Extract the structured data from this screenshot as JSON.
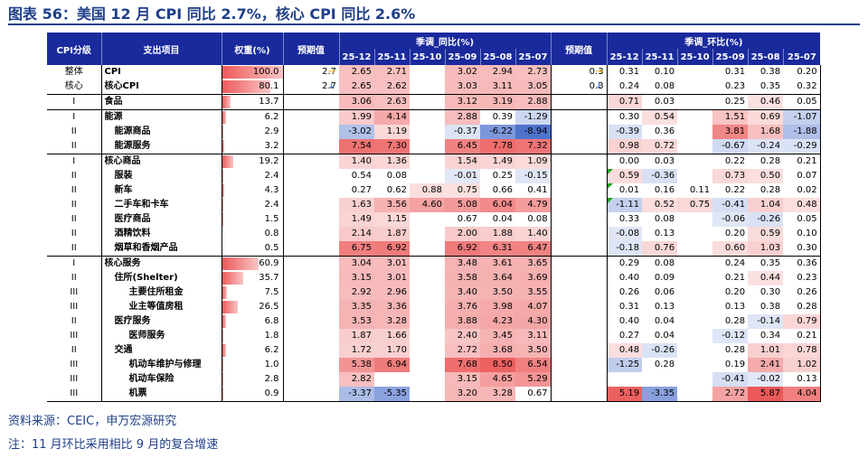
{
  "title": "图表 56：美国 12 月 CPI 同比 2.7%，核心 CPI 同比 2.6%",
  "header": {
    "cpi_level": "CPI分级",
    "item": "支出项目",
    "weight": "权重(%)",
    "forecast_yoy": "预期值",
    "yoy_group": "季调_同比(%)",
    "forecast_mom": "预期值",
    "mom_group": "季调_环比(%)",
    "months": [
      "25-12",
      "25-11",
      "25-10",
      "25-09",
      "25-08",
      "25-07"
    ]
  },
  "rows": [
    {
      "level": "整体",
      "name": "CPI",
      "indent": 0,
      "weight": "100.0",
      "wfrac": 1.0,
      "fy": "2.7",
      "fyi": "→",
      "yoy": [
        "2.65",
        "2.71",
        "",
        "3.02",
        "2.94",
        "2.73"
      ],
      "fm": "0.3",
      "fmi": "→",
      "mom": [
        "0.31",
        "0.10",
        "",
        "0.31",
        "0.38",
        "0.20"
      ]
    },
    {
      "level": "核心",
      "name": "核心CPI",
      "indent": 0,
      "weight": "80.1",
      "wfrac": 0.801,
      "fy": "2.7",
      "fyi": "↓",
      "yoy": [
        "2.65",
        "2.62",
        "",
        "3.03",
        "3.11",
        "3.05"
      ],
      "fm": "0.3",
      "fmi": "↓",
      "mom": [
        "0.24",
        "0.08",
        "",
        "0.23",
        "0.35",
        "0.32"
      ]
    },
    {
      "level": "I",
      "name": "食品",
      "indent": 0,
      "weight": "13.7",
      "wfrac": 0.137,
      "fy": "",
      "fyi": "",
      "yoy": [
        "3.06",
        "2.63",
        "",
        "3.12",
        "3.19",
        "2.88"
      ],
      "fm": "",
      "fmi": "",
      "mom": [
        "0.71",
        "0.03",
        "",
        "0.25",
        "0.46",
        "0.05"
      ]
    },
    {
      "level": "I",
      "name": "能源",
      "indent": 0,
      "weight": "6.2",
      "wfrac": 0.062,
      "fy": "",
      "fyi": "",
      "yoy": [
        "1.99",
        "4.14",
        "",
        "2.88",
        "0.39",
        "-1.29"
      ],
      "fm": "",
      "fmi": "",
      "mom": [
        "0.30",
        "0.54",
        "",
        "1.51",
        "0.69",
        "-1.07"
      ]
    },
    {
      "level": "II",
      "name": "能源商品",
      "indent": 1,
      "weight": "2.9",
      "wfrac": 0.029,
      "fy": "",
      "fyi": "",
      "yoy": [
        "-3.02",
        "1.19",
        "",
        "-0.37",
        "-6.22",
        "-8.94"
      ],
      "fm": "",
      "fmi": "",
      "mom": [
        "-0.39",
        "0.36",
        "",
        "3.81",
        "1.68",
        "-1.88"
      ]
    },
    {
      "level": "II",
      "name": "能源服务",
      "indent": 1,
      "weight": "3.2",
      "wfrac": 0.032,
      "fy": "",
      "fyi": "",
      "yoy": [
        "7.54",
        "7.30",
        "",
        "6.45",
        "7.78",
        "7.32"
      ],
      "fm": "",
      "fmi": "",
      "mom": [
        "0.98",
        "0.72",
        "",
        "-0.67",
        "-0.24",
        "-0.29"
      ]
    },
    {
      "level": "I",
      "name": "核心商品",
      "indent": 0,
      "weight": "19.2",
      "wfrac": 0.192,
      "fy": "",
      "fyi": "",
      "yoy": [
        "1.40",
        "1.36",
        "",
        "1.54",
        "1.49",
        "1.09"
      ],
      "fm": "",
      "fmi": "",
      "mom": [
        "0.00",
        "0.03",
        "",
        "0.22",
        "0.28",
        "0.21"
      ]
    },
    {
      "level": "II",
      "name": "服装",
      "indent": 1,
      "weight": "2.4",
      "wfrac": 0.024,
      "fy": "",
      "fyi": "",
      "yoy": [
        "0.54",
        "0.08",
        "",
        "-0.01",
        "0.25",
        "-0.15"
      ],
      "fm": "",
      "fmi": "",
      "mom": [
        "0.59",
        "-0.36",
        "",
        "0.73",
        "0.50",
        "0.07"
      ]
    },
    {
      "level": "II",
      "name": "新车",
      "indent": 1,
      "weight": "4.3",
      "wfrac": 0.043,
      "fy": "",
      "fyi": "",
      "yoy": [
        "0.27",
        "0.62",
        "0.88",
        "0.75",
        "0.66",
        "0.41"
      ],
      "fm": "",
      "fmi": "",
      "mom": [
        "0.01",
        "0.16",
        "0.11",
        "0.22",
        "0.28",
        "0.02"
      ]
    },
    {
      "level": "II",
      "name": "二手车和卡车",
      "indent": 1,
      "weight": "2.4",
      "wfrac": 0.024,
      "fy": "",
      "fyi": "",
      "yoy": [
        "1.63",
        "3.56",
        "4.60",
        "5.08",
        "6.04",
        "4.79"
      ],
      "fm": "",
      "fmi": "",
      "mom": [
        "-1.11",
        "0.52",
        "0.75",
        "-0.41",
        "1.04",
        "0.48"
      ]
    },
    {
      "level": "II",
      "name": "医疗商品",
      "indent": 1,
      "weight": "1.5",
      "wfrac": 0.015,
      "fy": "",
      "fyi": "",
      "yoy": [
        "1.49",
        "1.15",
        "",
        "0.67",
        "0.04",
        "0.08"
      ],
      "fm": "",
      "fmi": "",
      "mom": [
        "0.33",
        "0.08",
        "",
        "-0.06",
        "-0.26",
        "0.05"
      ]
    },
    {
      "level": "II",
      "name": "酒精饮料",
      "indent": 1,
      "weight": "0.8",
      "wfrac": 0.008,
      "fy": "",
      "fyi": "",
      "yoy": [
        "2.14",
        "1.87",
        "",
        "2.00",
        "1.88",
        "1.40"
      ],
      "fm": "",
      "fmi": "",
      "mom": [
        "-0.08",
        "0.13",
        "",
        "0.20",
        "0.59",
        "0.10"
      ]
    },
    {
      "level": "II",
      "name": "烟草和香烟产品",
      "indent": 1,
      "weight": "0.5",
      "wfrac": 0.005,
      "fy": "",
      "fyi": "",
      "yoy": [
        "6.75",
        "6.92",
        "",
        "6.92",
        "6.31",
        "6.47"
      ],
      "fm": "",
      "fmi": "",
      "mom": [
        "-0.18",
        "0.76",
        "",
        "0.60",
        "1.03",
        "0.30"
      ]
    },
    {
      "level": "I",
      "name": "核心服务",
      "indent": 0,
      "weight": "60.9",
      "wfrac": 0.609,
      "fy": "",
      "fyi": "",
      "yoy": [
        "3.04",
        "3.01",
        "",
        "3.48",
        "3.61",
        "3.65"
      ],
      "fm": "",
      "fmi": "",
      "mom": [
        "0.29",
        "0.08",
        "",
        "0.24",
        "0.35",
        "0.36"
      ]
    },
    {
      "level": "II",
      "name": "住所(Shelter)",
      "indent": 1,
      "weight": "35.7",
      "wfrac": 0.357,
      "fy": "",
      "fyi": "",
      "yoy": [
        "3.15",
        "3.01",
        "",
        "3.58",
        "3.64",
        "3.69"
      ],
      "fm": "",
      "fmi": "",
      "mom": [
        "0.40",
        "0.09",
        "",
        "0.21",
        "0.44",
        "0.23"
      ]
    },
    {
      "level": "III",
      "name": "主要住所租金",
      "indent": 2,
      "weight": "7.5",
      "wfrac": 0.075,
      "fy": "",
      "fyi": "",
      "yoy": [
        "2.92",
        "2.96",
        "",
        "3.40",
        "3.50",
        "3.55"
      ],
      "fm": "",
      "fmi": "",
      "mom": [
        "0.26",
        "0.06",
        "",
        "0.20",
        "0.30",
        "0.26"
      ]
    },
    {
      "level": "III",
      "name": "业主等值房租",
      "indent": 2,
      "weight": "26.5",
      "wfrac": 0.265,
      "fy": "",
      "fyi": "",
      "yoy": [
        "3.35",
        "3.36",
        "",
        "3.76",
        "3.98",
        "4.07"
      ],
      "fm": "",
      "fmi": "",
      "mom": [
        "0.31",
        "0.13",
        "",
        "0.13",
        "0.38",
        "0.28"
      ]
    },
    {
      "level": "II",
      "name": "医疗服务",
      "indent": 1,
      "weight": "6.8",
      "wfrac": 0.068,
      "fy": "",
      "fyi": "",
      "yoy": [
        "3.53",
        "3.28",
        "",
        "3.88",
        "4.23",
        "4.30"
      ],
      "fm": "",
      "fmi": "",
      "mom": [
        "0.40",
        "0.04",
        "",
        "0.28",
        "-0.14",
        "0.79"
      ]
    },
    {
      "level": "III",
      "name": "医师服务",
      "indent": 2,
      "weight": "1.8",
      "wfrac": 0.018,
      "fy": "",
      "fyi": "",
      "yoy": [
        "1.87",
        "1.66",
        "",
        "2.40",
        "3.45",
        "3.11"
      ],
      "fm": "",
      "fmi": "",
      "mom": [
        "0.27",
        "0.04",
        "",
        "-0.12",
        "0.34",
        "0.21"
      ]
    },
    {
      "level": "II",
      "name": "交通",
      "indent": 1,
      "weight": "6.2",
      "wfrac": 0.062,
      "fy": "",
      "fyi": "",
      "yoy": [
        "1.72",
        "1.70",
        "",
        "2.72",
        "3.68",
        "3.50"
      ],
      "fm": "",
      "fmi": "",
      "mom": [
        "0.48",
        "-0.26",
        "",
        "0.28",
        "1.01",
        "0.78"
      ]
    },
    {
      "level": "III",
      "name": "机动车维护与修理",
      "indent": 2,
      "weight": "1.0",
      "wfrac": 0.01,
      "fy": "",
      "fyi": "",
      "yoy": [
        "5.38",
        "6.94",
        "",
        "7.68",
        "8.50",
        "6.54"
      ],
      "fm": "",
      "fmi": "",
      "mom": [
        "-1.25",
        "0.28",
        "",
        "0.19",
        "2.41",
        "1.02"
      ]
    },
    {
      "level": "III",
      "name": "机动车保险",
      "indent": 2,
      "weight": "2.8",
      "wfrac": 0.028,
      "fy": "",
      "fyi": "",
      "yoy": [
        "2.82",
        "",
        "",
        "3.15",
        "4.65",
        "5.29"
      ],
      "fm": "",
      "fmi": "",
      "mom": [
        "",
        "",
        "",
        "-0.41",
        "-0.02",
        "0.13"
      ]
    },
    {
      "level": "III",
      "name": "机票",
      "indent": 2,
      "weight": "0.9",
      "wfrac": 0.009,
      "fy": "",
      "fyi": "",
      "yoy": [
        "-3.37",
        "-5.35",
        "",
        "3.20",
        "3.28",
        "0.67"
      ],
      "fm": "",
      "fmi": "",
      "mom": [
        "5.19",
        "-3.35",
        "",
        "2.72",
        "5.87",
        "4.04"
      ]
    }
  ],
  "colors": {
    "header_bg": "#1a2a9c",
    "title": "#1f3f8a",
    "pos": "#e83c3c",
    "neg": "#3c64c8"
  },
  "notes": {
    "source": "资料来源：CEIC，申万宏源研究",
    "note": "注：11 月环比采用相比 9 月的复合增速"
  }
}
